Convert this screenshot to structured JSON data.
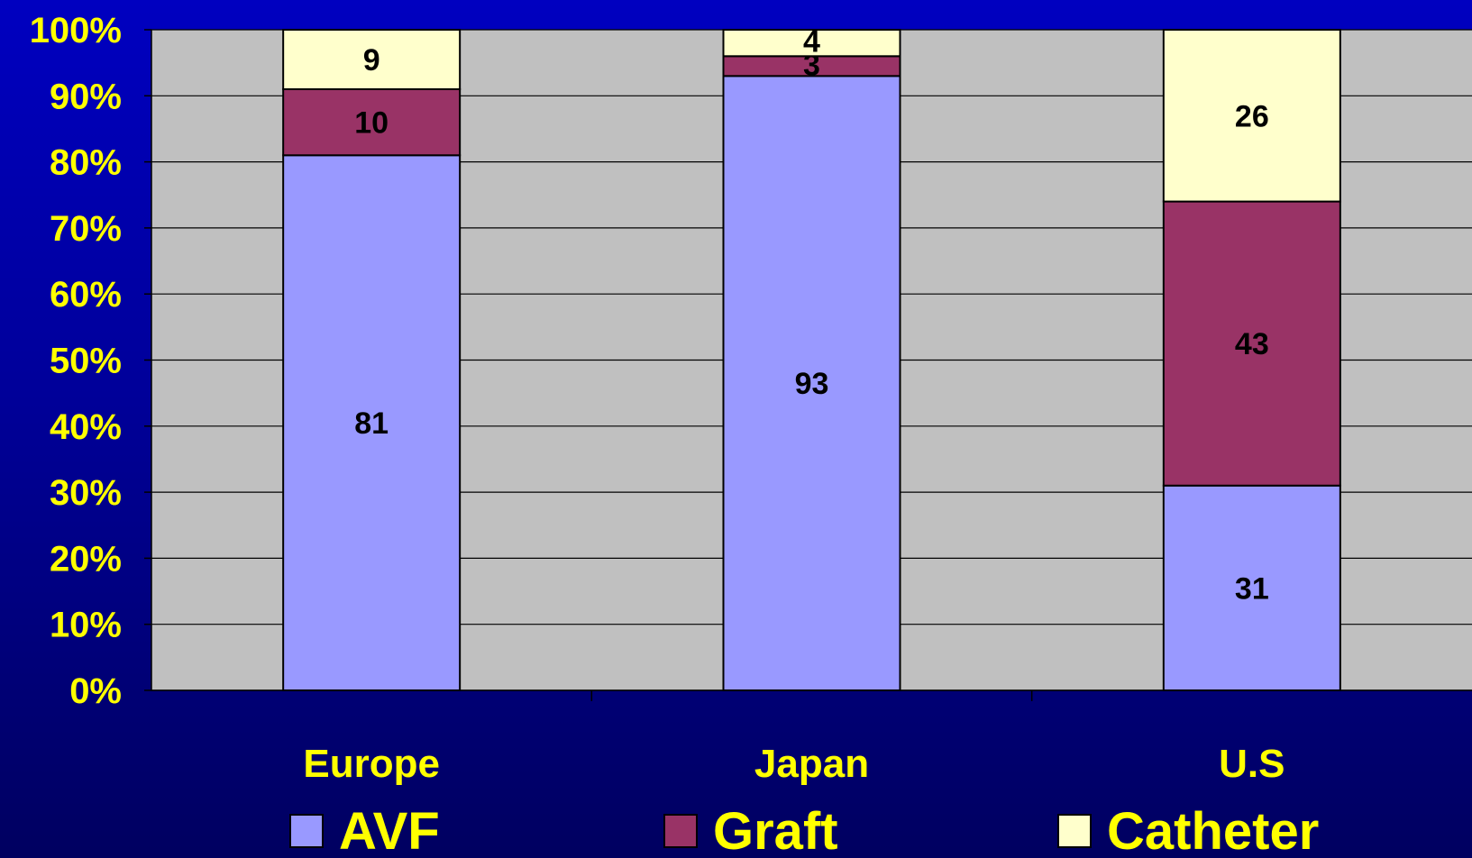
{
  "chart_data": {
    "type": "bar",
    "stacked": true,
    "categories": [
      "Europe",
      "Japan",
      "U.S"
    ],
    "series": [
      {
        "name": "AVF",
        "values": [
          81,
          93,
          31
        ],
        "color": "#9999ff"
      },
      {
        "name": "Graft",
        "values": [
          10,
          3,
          43
        ],
        "color": "#993366"
      },
      {
        "name": "Catheter",
        "values": [
          9,
          4,
          26
        ],
        "color": "#ffffcc"
      }
    ],
    "ylim": [
      0,
      100
    ],
    "yticks": [
      "0%",
      "10%",
      "20%",
      "30%",
      "40%",
      "50%",
      "60%",
      "70%",
      "80%",
      "90%",
      "100%"
    ],
    "grid": true,
    "legend_position": "bottom",
    "title": "",
    "xlabel": "",
    "ylabel": ""
  },
  "colors": {
    "plot_background": "#c0c0c0",
    "tick_text": "#ffff00",
    "page_background": "#0000b0"
  }
}
